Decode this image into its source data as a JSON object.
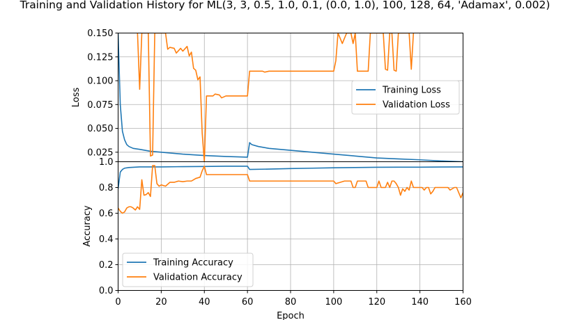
{
  "chart_data": {
    "title": "Training and Validation History for ML(3, 3, 0.5, 1.0, 0.1, (0.0, 1.0), 100, 128, 64, 'Adamax', 0.002)",
    "xlabel": "Epoch",
    "xlim": [
      0,
      160
    ],
    "x_ticks": [
      "0",
      "20",
      "40",
      "60",
      "80",
      "100",
      "120",
      "140",
      "160"
    ],
    "charts": [
      {
        "type": "line",
        "ylabel": "Loss",
        "ylim": [
          0.015,
          0.15
        ],
        "y_ticks": [
          "0.025",
          "0.050",
          "0.075",
          "0.100",
          "0.125",
          "0.150"
        ],
        "legend_position": "center-right",
        "series": [
          {
            "name": "Training Loss",
            "color": "#1f77b4",
            "points": [
              [
                0,
                0.15
              ],
              [
                1,
                0.075
              ],
              [
                2,
                0.047
              ],
              [
                3,
                0.038
              ],
              [
                4,
                0.033
              ],
              [
                5,
                0.031
              ],
              [
                7,
                0.029
              ],
              [
                10,
                0.028
              ],
              [
                15,
                0.026
              ],
              [
                20,
                0.025
              ],
              [
                30,
                0.023
              ],
              [
                40,
                0.0215
              ],
              [
                50,
                0.0205
              ],
              [
                60,
                0.0198
              ],
              [
                61,
                0.035
              ],
              [
                62,
                0.033
              ],
              [
                65,
                0.031
              ],
              [
                70,
                0.029
              ],
              [
                80,
                0.027
              ],
              [
                90,
                0.025
              ],
              [
                100,
                0.023
              ],
              [
                110,
                0.021
              ],
              [
                120,
                0.019
              ],
              [
                130,
                0.018
              ],
              [
                140,
                0.017
              ],
              [
                150,
                0.0158
              ],
              [
                160,
                0.015
              ]
            ]
          },
          {
            "name": "Validation Loss",
            "color": "#ff7f0e",
            "points": [
              [
                9,
                0.15
              ],
              [
                10,
                0.091
              ],
              [
                11,
                0.15
              ],
              [
                14,
                0.15
              ],
              [
                15,
                0.021
              ],
              [
                16,
                0.022
              ],
              [
                17,
                0.15
              ],
              [
                22,
                0.15
              ],
              [
                23,
                0.133
              ],
              [
                24,
                0.135
              ],
              [
                26,
                0.134
              ],
              [
                27,
                0.129
              ],
              [
                29,
                0.134
              ],
              [
                30,
                0.131
              ],
              [
                32,
                0.136
              ],
              [
                33,
                0.126
              ],
              [
                34,
                0.13
              ],
              [
                35,
                0.113
              ],
              [
                36,
                0.111
              ],
              [
                37,
                0.101
              ],
              [
                38,
                0.104
              ],
              [
                39,
                0.045
              ],
              [
                40,
                0.015
              ],
              [
                41,
                0.084
              ],
              [
                42,
                0.084
              ],
              [
                44,
                0.084
              ],
              [
                45,
                0.086
              ],
              [
                47,
                0.085
              ],
              [
                48,
                0.082
              ],
              [
                50,
                0.084
              ],
              [
                60,
                0.084
              ],
              [
                61,
                0.11
              ],
              [
                67,
                0.11
              ],
              [
                68,
                0.109
              ],
              [
                70,
                0.11
              ],
              [
                100,
                0.11
              ],
              [
                101,
                0.121
              ],
              [
                102,
                0.15
              ],
              [
                104,
                0.139
              ],
              [
                106,
                0.15
              ],
              [
                108,
                0.15
              ],
              [
                109,
                0.139
              ],
              [
                110,
                0.15
              ],
              [
                111,
                0.11
              ],
              [
                116,
                0.11
              ],
              [
                117,
                0.15
              ],
              [
                123,
                0.15
              ],
              [
                124,
                0.112
              ],
              [
                125,
                0.111
              ],
              [
                126,
                0.15
              ],
              [
                127,
                0.15
              ],
              [
                128,
                0.111
              ],
              [
                129,
                0.11
              ],
              [
                130,
                0.15
              ],
              [
                135,
                0.15
              ],
              [
                136,
                0.112
              ],
              [
                137,
                0.15
              ]
            ]
          }
        ]
      },
      {
        "type": "line",
        "ylabel": "Accuracy",
        "ylim": [
          0,
          1
        ],
        "y_ticks": [
          "0.0",
          "0.2",
          "0.4",
          "0.6",
          "0.8",
          "1.0"
        ],
        "legend_position": "lower-left",
        "series": [
          {
            "name": "Training Accuracy",
            "color": "#1f77b4",
            "points": [
              [
                0,
                0.79
              ],
              [
                1,
                0.92
              ],
              [
                2,
                0.94
              ],
              [
                3,
                0.95
              ],
              [
                5,
                0.955
              ],
              [
                10,
                0.96
              ],
              [
                20,
                0.96
              ],
              [
                30,
                0.962
              ],
              [
                40,
                0.963
              ],
              [
                50,
                0.965
              ],
              [
                60,
                0.965
              ],
              [
                61,
                0.94
              ],
              [
                70,
                0.943
              ],
              [
                80,
                0.947
              ],
              [
                90,
                0.95
              ],
              [
                100,
                0.953
              ],
              [
                110,
                0.955
              ],
              [
                120,
                0.957
              ],
              [
                130,
                0.958
              ],
              [
                140,
                0.958
              ],
              [
                150,
                0.959
              ],
              [
                160,
                0.96
              ]
            ]
          },
          {
            "name": "Validation Accuracy",
            "color": "#ff7f0e",
            "points": [
              [
                0,
                0.64
              ],
              [
                1,
                0.615
              ],
              [
                2,
                0.6
              ],
              [
                3,
                0.61
              ],
              [
                4,
                0.64
              ],
              [
                5,
                0.65
              ],
              [
                6,
                0.65
              ],
              [
                7,
                0.64
              ],
              [
                8,
                0.625
              ],
              [
                9,
                0.65
              ],
              [
                10,
                0.63
              ],
              [
                11,
                0.86
              ],
              [
                12,
                0.74
              ],
              [
                13,
                0.745
              ],
              [
                14,
                0.76
              ],
              [
                15,
                0.73
              ],
              [
                16,
                0.97
              ],
              [
                17,
                0.97
              ],
              [
                18,
                0.83
              ],
              [
                19,
                0.81
              ],
              [
                20,
                0.82
              ],
              [
                22,
                0.81
              ],
              [
                24,
                0.84
              ],
              [
                26,
                0.84
              ],
              [
                28,
                0.85
              ],
              [
                30,
                0.845
              ],
              [
                32,
                0.85
              ],
              [
                34,
                0.85
              ],
              [
                35,
                0.86
              ],
              [
                36,
                0.87
              ],
              [
                38,
                0.88
              ],
              [
                39,
                0.93
              ],
              [
                40,
                0.965
              ],
              [
                41,
                0.9
              ],
              [
                42,
                0.9
              ],
              [
                45,
                0.9
              ],
              [
                50,
                0.9
              ],
              [
                60,
                0.9
              ],
              [
                61,
                0.85
              ],
              [
                100,
                0.85
              ],
              [
                101,
                0.83
              ],
              [
                103,
                0.84
              ],
              [
                105,
                0.85
              ],
              [
                108,
                0.85
              ],
              [
                109,
                0.8
              ],
              [
                110,
                0.8
              ],
              [
                111,
                0.85
              ],
              [
                115,
                0.85
              ],
              [
                116,
                0.8
              ],
              [
                120,
                0.8
              ],
              [
                121,
                0.85
              ],
              [
                122,
                0.8
              ],
              [
                124,
                0.8
              ],
              [
                125,
                0.84
              ],
              [
                126,
                0.8
              ],
              [
                127,
                0.85
              ],
              [
                128,
                0.85
              ],
              [
                129,
                0.83
              ],
              [
                130,
                0.8
              ],
              [
                131,
                0.74
              ],
              [
                132,
                0.79
              ],
              [
                133,
                0.77
              ],
              [
                134,
                0.8
              ],
              [
                135,
                0.78
              ],
              [
                136,
                0.85
              ],
              [
                137,
                0.8
              ],
              [
                141,
                0.8
              ],
              [
                142,
                0.78
              ],
              [
                143,
                0.8
              ],
              [
                144,
                0.8
              ],
              [
                145,
                0.75
              ],
              [
                146,
                0.77
              ],
              [
                147,
                0.8
              ],
              [
                153,
                0.8
              ],
              [
                154,
                0.78
              ],
              [
                155,
                0.79
              ],
              [
                156,
                0.8
              ],
              [
                157,
                0.8
              ],
              [
                158,
                0.76
              ],
              [
                159,
                0.72
              ],
              [
                160,
                0.76
              ]
            ]
          }
        ]
      }
    ]
  }
}
